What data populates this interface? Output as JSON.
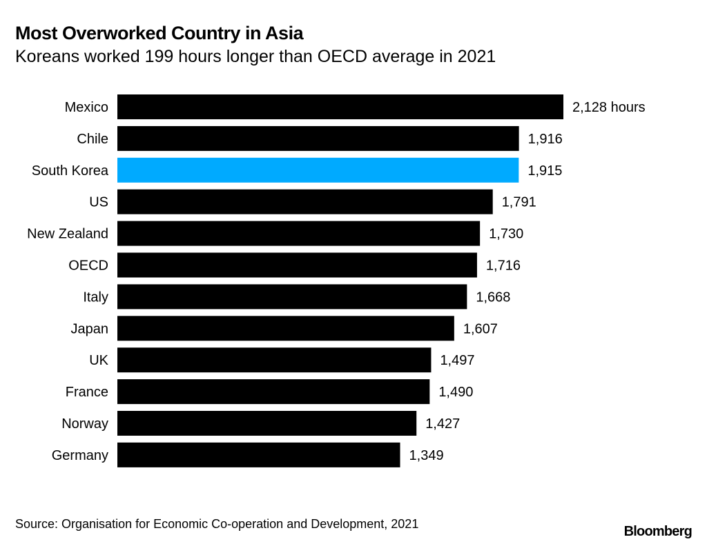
{
  "chart_data": {
    "type": "bar",
    "orientation": "horizontal",
    "title": "Most Overworked Country in Asia",
    "subtitle": "Koreans worked 199 hours longer than OECD average in 2021",
    "categories": [
      "Mexico",
      "Chile",
      "South Korea",
      "US",
      "New Zealand",
      "OECD",
      "Italy",
      "Japan",
      "UK",
      "France",
      "Norway",
      "Germany"
    ],
    "values": [
      2128,
      1916,
      1915,
      1791,
      1730,
      1716,
      1668,
      1607,
      1497,
      1490,
      1427,
      1349
    ],
    "value_labels": [
      "2,128 hours",
      "1,916",
      "1,915",
      "1,791",
      "1,730",
      "1,716",
      "1,668",
      "1,607",
      "1,497",
      "1,490",
      "1,427",
      "1,349"
    ],
    "highlight": "South Korea",
    "unit": "hours",
    "xlim": [
      0,
      2128
    ],
    "grid": false,
    "xlabel": "",
    "ylabel": "",
    "colors": {
      "default": "#000000",
      "highlight": "#00aaff"
    }
  },
  "footer": {
    "source": "Source: Organisation for Economic Co-operation and Development, 2021",
    "logo": "Bloomberg"
  }
}
